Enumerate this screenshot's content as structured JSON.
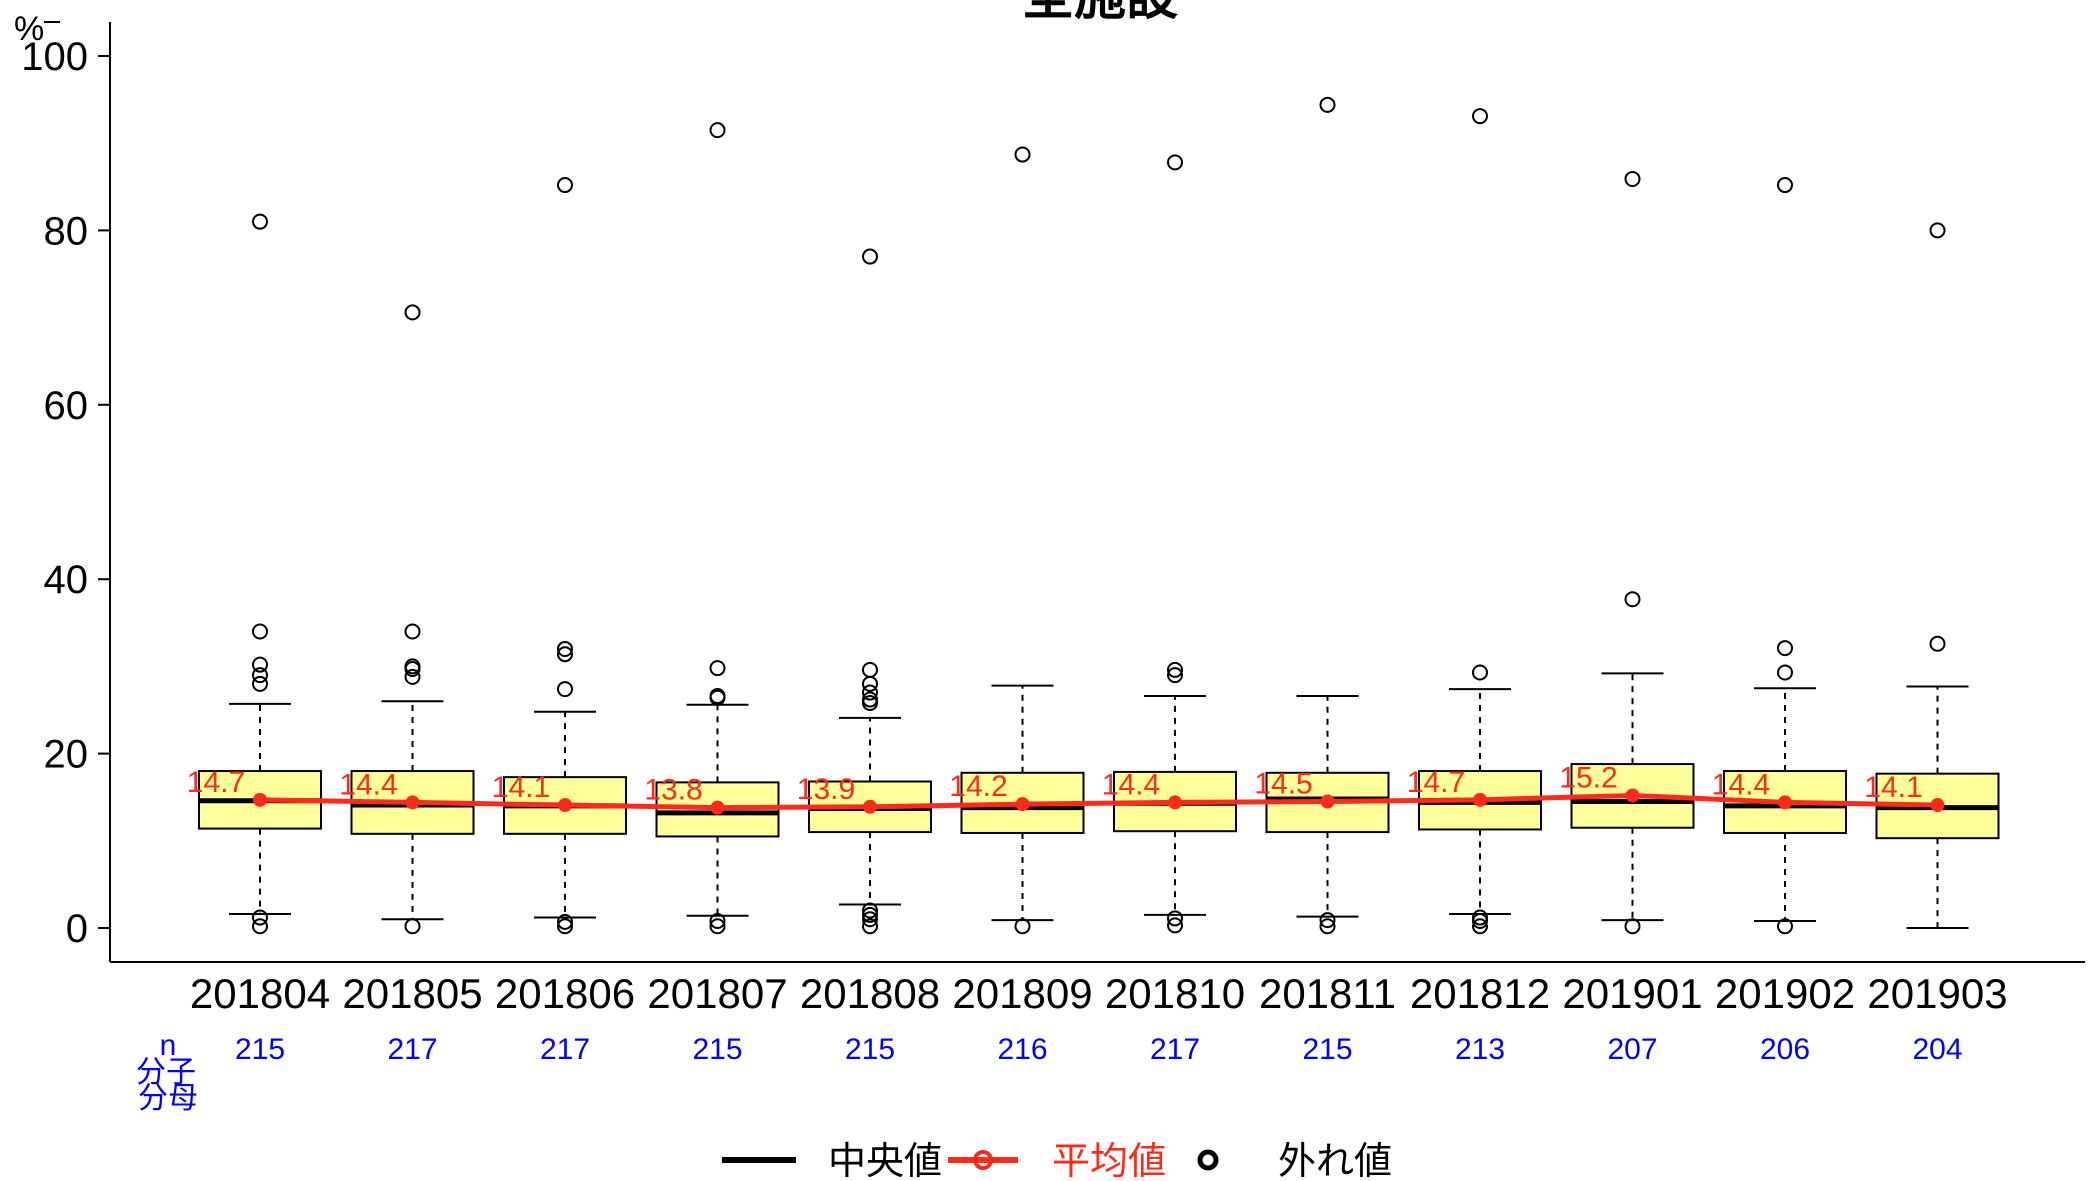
{
  "chart_data": {
    "type": "box",
    "title": "全施設",
    "ylabel": "%",
    "ylim": [
      0,
      100
    ],
    "yticks": [
      0,
      20,
      40,
      60,
      80,
      100
    ],
    "categories": [
      "201804",
      "201805",
      "201806",
      "201807",
      "201808",
      "201809",
      "201810",
      "201811",
      "201812",
      "201901",
      "201902",
      "201903"
    ],
    "n_row_label": "n",
    "n_sublabels": [
      "分子",
      "分母"
    ],
    "n": [
      215,
      217,
      217,
      215,
      215,
      216,
      217,
      215,
      213,
      207,
      206,
      204
    ],
    "mean_labels": [
      "14.7",
      "14.4",
      "14.1",
      "13.8",
      "13.9",
      "14.2",
      "14.4",
      "14.5",
      "14.7",
      "15.2",
      "14.4",
      "14.1"
    ],
    "series": [
      {
        "name": "平均値",
        "values": [
          14.7,
          14.4,
          14.1,
          13.8,
          13.9,
          14.2,
          14.4,
          14.5,
          14.7,
          15.2,
          14.4,
          14.1
        ]
      }
    ],
    "boxes": [
      {
        "whisker_low": 1.6,
        "q1": 11.4,
        "median": 14.6,
        "q3": 18.0,
        "whisker_high": 25.7,
        "outliers": [
          0.2,
          1.2,
          28.0,
          29.0,
          30.2,
          34.0,
          81.0
        ]
      },
      {
        "whisker_low": 1.0,
        "q1": 10.8,
        "median": 14.1,
        "q3": 18.0,
        "whisker_high": 26.0,
        "outliers": [
          0.2,
          28.8,
          29.7,
          30.0,
          34.0,
          70.6
        ]
      },
      {
        "whisker_low": 1.2,
        "q1": 10.8,
        "median": 14.0,
        "q3": 17.3,
        "whisker_high": 24.8,
        "outliers": [
          0.2,
          0.7,
          27.4,
          31.4,
          32.0,
          85.2
        ]
      },
      {
        "whisker_low": 1.4,
        "q1": 10.5,
        "median": 13.2,
        "q3": 16.7,
        "whisker_high": 25.6,
        "outliers": [
          0.2,
          0.8,
          26.4,
          26.6,
          29.8,
          91.5
        ]
      },
      {
        "whisker_low": 2.7,
        "q1": 11.0,
        "median": 13.7,
        "q3": 16.8,
        "whisker_high": 24.1,
        "outliers": [
          0.2,
          1.0,
          1.5,
          2.0,
          25.8,
          26.2,
          27.0,
          28.0,
          29.6,
          77.0
        ]
      },
      {
        "whisker_low": 0.9,
        "q1": 10.9,
        "median": 13.8,
        "q3": 17.8,
        "whisker_high": 27.8,
        "outliers": [
          0.2,
          88.7
        ]
      },
      {
        "whisker_low": 1.5,
        "q1": 11.1,
        "median": 14.3,
        "q3": 17.9,
        "whisker_high": 26.6,
        "outliers": [
          0.3,
          1.1,
          29.0,
          29.6,
          87.8
        ]
      },
      {
        "whisker_low": 1.3,
        "q1": 11.0,
        "median": 14.8,
        "q3": 17.8,
        "whisker_high": 26.6,
        "outliers": [
          0.2,
          0.9,
          94.4
        ]
      },
      {
        "whisker_low": 1.6,
        "q1": 11.3,
        "median": 14.4,
        "q3": 18.0,
        "whisker_high": 27.4,
        "outliers": [
          0.2,
          0.8,
          1.2,
          29.3,
          93.1
        ]
      },
      {
        "whisker_low": 0.9,
        "q1": 11.5,
        "median": 14.5,
        "q3": 18.8,
        "whisker_high": 29.2,
        "outliers": [
          0.2,
          37.7,
          85.9
        ]
      },
      {
        "whisker_low": 0.8,
        "q1": 10.9,
        "median": 14.0,
        "q3": 18.0,
        "whisker_high": 27.5,
        "outliers": [
          0.2,
          29.3,
          32.1,
          85.2
        ]
      },
      {
        "whisker_low": 0.0,
        "q1": 10.3,
        "median": 13.8,
        "q3": 17.7,
        "whisker_high": 27.7,
        "outliers": [
          32.6,
          80.0
        ]
      }
    ],
    "legend": {
      "placement": "bottom",
      "items": [
        {
          "label": "中央値",
          "kind": "line",
          "color": "#000000"
        },
        {
          "label": "平均値",
          "kind": "line-point",
          "color": "#ff2a1a"
        },
        {
          "label": "外れ値",
          "kind": "point",
          "color": "#000000"
        }
      ]
    },
    "colors": {
      "box_fill": "#ffff99",
      "mean": "#ff2a1a",
      "median": "#000000",
      "n_text": "#0000ff"
    }
  }
}
